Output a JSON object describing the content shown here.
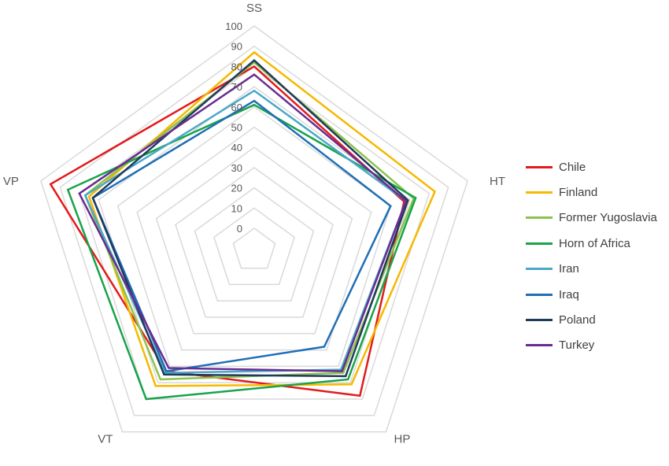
{
  "chart_data": {
    "type": "radar",
    "axes": [
      "SS",
      "HT",
      "HP",
      "VT",
      "VP"
    ],
    "rlim": [
      0,
      100
    ],
    "ticks": [
      0,
      10,
      20,
      30,
      40,
      50,
      60,
      70,
      80,
      90,
      100
    ],
    "grid": true,
    "legend": "right",
    "series": [
      {
        "name": "Chile",
        "color": "#e41a1c",
        "values": [
          80,
          67,
          78,
          63,
          95
        ]
      },
      {
        "name": "Finland",
        "color": "#f6b800",
        "values": [
          87,
          83,
          71,
          72,
          75
        ]
      },
      {
        "name": "Former Yugoslavia",
        "color": "#8bc34a",
        "values": [
          82,
          72,
          64,
          68,
          77
        ]
      },
      {
        "name": "Horn of Africa",
        "color": "#1aa34a",
        "values": [
          61,
          73,
          68,
          80,
          86
        ]
      },
      {
        "name": "Iran",
        "color": "#4ba8c8",
        "values": [
          68,
          68,
          62,
          64,
          77
        ]
      },
      {
        "name": "Iraq",
        "color": "#1f6fb5",
        "values": [
          63,
          60,
          48,
          63,
          73
        ]
      },
      {
        "name": "Poland",
        "color": "#203a5c",
        "values": [
          83,
          69,
          66,
          65,
          73
        ]
      },
      {
        "name": "Turkey",
        "color": "#6a2c91",
        "values": [
          76,
          68,
          63,
          61,
          80
        ]
      }
    ]
  }
}
